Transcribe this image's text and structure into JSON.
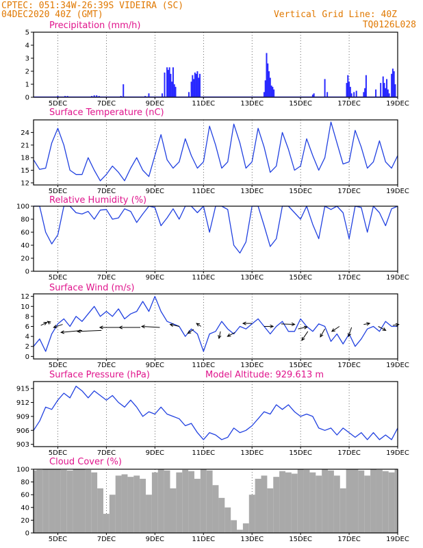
{
  "header": {
    "line1_left": "CPTEC:   051:34W-26:39S   VIDEIRA (SC)",
    "line2_left": "04DEC2020 40Z (GMT)",
    "line1_right": "Vertical Grid Line: 40Z",
    "line2_right": "TQ0126L028"
  },
  "x_labels": [
    "5DEC",
    "7DEC",
    "9DEC",
    "11DEC",
    "13DEC",
    "15DEC",
    "17DEC",
    "19DEC"
  ],
  "chart_data": [
    {
      "type": "bar",
      "title": "Precipitation (mm/h)",
      "ylim": [
        0,
        5
      ],
      "yticks": [
        "0",
        "1",
        "2",
        "3",
        "4",
        "5"
      ],
      "x_unit": "day of month (Dec 2020)",
      "color": "#2828ff",
      "x": [
        4.3,
        4.8,
        5.0,
        5.3,
        5.4,
        6.4,
        6.5,
        6.6,
        6.7,
        7.6,
        7.7,
        8.6,
        8.75,
        9.3,
        9.4,
        9.5,
        9.55,
        9.6,
        9.65,
        9.7,
        9.75,
        9.8,
        9.85,
        10.4,
        10.5,
        10.55,
        10.6,
        10.65,
        10.7,
        10.75,
        10.8,
        10.85,
        13.5,
        13.55,
        13.6,
        13.65,
        13.7,
        13.75,
        13.8,
        13.85,
        13.9,
        15.5,
        15.55,
        16.0,
        16.1,
        16.9,
        16.95,
        17.0,
        17.05,
        17.1,
        17.2,
        17.3,
        17.6,
        17.65,
        17.7,
        18.1,
        18.3,
        18.4,
        18.45,
        18.5,
        18.55,
        18.6,
        18.65,
        18.75,
        18.8,
        18.85,
        18.9
      ],
      "values": [
        0.05,
        0.05,
        0.1,
        0.1,
        0.1,
        0.1,
        0.15,
        0.15,
        0.1,
        0.1,
        1.0,
        0.1,
        0.3,
        0.3,
        1.9,
        2.3,
        2.1,
        2.3,
        1.8,
        1.2,
        2.3,
        1.0,
        0.8,
        0.4,
        1.2,
        1.7,
        1.4,
        1.9,
        1.8,
        2.0,
        1.5,
        1.8,
        0.4,
        1.3,
        3.4,
        2.6,
        2.0,
        1.5,
        0.9,
        0.8,
        0.6,
        0.2,
        0.3,
        1.4,
        0.4,
        1.1,
        1.7,
        1.2,
        0.8,
        0.3,
        0.4,
        0.5,
        0.4,
        0.7,
        1.7,
        0.6,
        1.1,
        1.6,
        1.1,
        0.7,
        1.4,
        0.6,
        0.3,
        1.8,
        2.2,
        2.0,
        1.0
      ]
    },
    {
      "type": "line",
      "title": "Surface Temperature (nC)",
      "ylim": [
        11.5,
        27
      ],
      "yticks": [
        "12",
        "15",
        "18",
        "21",
        "24"
      ],
      "x_unit": "day of month (Dec 2020)",
      "color": "#2040e0",
      "x": [
        4.0,
        4.25,
        4.5,
        4.75,
        5.0,
        5.25,
        5.5,
        5.75,
        6.0,
        6.25,
        6.5,
        6.75,
        7.0,
        7.25,
        7.5,
        7.75,
        8.0,
        8.25,
        8.5,
        8.75,
        9.0,
        9.25,
        9.5,
        9.75,
        10.0,
        10.25,
        10.5,
        10.75,
        11.0,
        11.25,
        11.5,
        11.75,
        12.0,
        12.25,
        12.5,
        12.75,
        13.0,
        13.25,
        13.5,
        13.75,
        14.0,
        14.25,
        14.5,
        14.75,
        15.0,
        15.25,
        15.5,
        15.75,
        16.0,
        16.25,
        16.5,
        16.75,
        17.0,
        17.25,
        17.5,
        17.75,
        18.0,
        18.25,
        18.5,
        18.75,
        19.0
      ],
      "values": [
        17.5,
        15.2,
        15.5,
        21.5,
        25.0,
        21.0,
        15.0,
        14.0,
        14.0,
        18.0,
        15.0,
        12.5,
        14.0,
        16.0,
        14.5,
        12.5,
        15.5,
        18.0,
        15.0,
        13.5,
        18.5,
        23.5,
        17.5,
        15.5,
        17.0,
        22.5,
        18.5,
        15.5,
        17.0,
        25.5,
        21.0,
        15.5,
        17.0,
        26.0,
        21.5,
        15.5,
        17.0,
        25.0,
        20.5,
        14.5,
        16.0,
        24.0,
        20.0,
        15.0,
        16.0,
        22.5,
        18.5,
        15.0,
        18.0,
        26.5,
        21.5,
        16.5,
        17.0,
        24.5,
        20.5,
        15.5,
        17.0,
        22.0,
        17.0,
        15.5,
        18.5
      ]
    },
    {
      "type": "line",
      "title": "Relative Humidity (%)",
      "ylim": [
        0,
        100
      ],
      "yticks": [
        "0",
        "20",
        "40",
        "60",
        "80",
        "100"
      ],
      "x_unit": "day of month (Dec 2020)",
      "color": "#2040e0",
      "x": [
        4.0,
        4.25,
        4.5,
        4.75,
        5.0,
        5.25,
        5.5,
        5.75,
        6.0,
        6.25,
        6.5,
        6.75,
        7.0,
        7.25,
        7.5,
        7.75,
        8.0,
        8.25,
        8.5,
        8.75,
        9.0,
        9.25,
        9.5,
        9.75,
        10.0,
        10.25,
        10.5,
        10.75,
        11.0,
        11.25,
        11.5,
        11.75,
        12.0,
        12.25,
        12.5,
        12.75,
        13.0,
        13.25,
        13.5,
        13.75,
        14.0,
        14.25,
        14.5,
        14.75,
        15.0,
        15.25,
        15.5,
        15.75,
        16.0,
        16.25,
        16.5,
        16.75,
        17.0,
        17.25,
        17.5,
        17.75,
        18.0,
        18.25,
        18.5,
        18.75,
        19.0
      ],
      "values": [
        100,
        100,
        60,
        42,
        56,
        100,
        100,
        90,
        88,
        92,
        80,
        94,
        95,
        80,
        82,
        96,
        92,
        75,
        88,
        100,
        98,
        70,
        82,
        96,
        80,
        100,
        100,
        90,
        100,
        60,
        100,
        100,
        95,
        40,
        28,
        45,
        100,
        100,
        70,
        38,
        50,
        100,
        100,
        90,
        80,
        100,
        72,
        50,
        100,
        95,
        100,
        90,
        50,
        100,
        98,
        60,
        100,
        90,
        70,
        96,
        100
      ]
    },
    {
      "type": "line",
      "title": "Surface Wind (m/s)",
      "ylim": [
        -0.5,
        12.5
      ],
      "yticks": [
        "0",
        "2",
        "4",
        "6",
        "8",
        "10",
        "12"
      ],
      "x_unit": "day of month (Dec 2020)",
      "color": "#2040e0",
      "x": [
        4.0,
        4.25,
        4.5,
        4.75,
        5.0,
        5.25,
        5.5,
        5.75,
        6.0,
        6.25,
        6.5,
        6.75,
        7.0,
        7.25,
        7.5,
        7.75,
        8.0,
        8.25,
        8.5,
        8.75,
        9.0,
        9.25,
        9.5,
        9.75,
        10.0,
        10.25,
        10.5,
        10.75,
        11.0,
        11.25,
        11.5,
        11.75,
        12.0,
        12.25,
        12.5,
        12.75,
        13.0,
        13.25,
        13.5,
        13.75,
        14.0,
        14.25,
        14.5,
        14.75,
        15.0,
        15.25,
        15.5,
        15.75,
        16.0,
        16.25,
        16.5,
        16.75,
        17.0,
        17.25,
        17.5,
        17.75,
        18.0,
        18.25,
        18.5,
        18.75,
        19.0
      ],
      "values": [
        2.0,
        3.5,
        1.0,
        4.5,
        6.5,
        7.5,
        6.0,
        8.0,
        7.0,
        8.5,
        10.0,
        8.0,
        9.0,
        8.0,
        9.5,
        7.5,
        8.5,
        9.0,
        11.0,
        9.0,
        12.0,
        9.0,
        7.0,
        6.5,
        6.0,
        4.0,
        5.5,
        4.5,
        1.0,
        4.5,
        5.0,
        7.0,
        5.5,
        4.5,
        6.0,
        5.5,
        6.5,
        7.5,
        6.0,
        4.5,
        6.0,
        7.0,
        5.0,
        5.0,
        7.5,
        6.0,
        5.0,
        6.5,
        6.0,
        3.0,
        4.5,
        2.5,
        4.5,
        2.0,
        3.5,
        5.5,
        6.0,
        5.0,
        7.0,
        6.0,
        6.0
      ],
      "arrow_x": [
        4.3,
        4.7,
        5.2,
        6.0,
        6.8,
        7.6,
        8.4,
        9.2,
        10.0,
        10.6,
        10.9,
        11.7,
        12.3,
        13.0,
        13.5,
        14.2,
        14.9,
        15.3,
        16.0,
        16.6,
        17.1,
        17.6,
        18.2,
        18.8
      ],
      "arrow_y": [
        6.2,
        6.6,
        6.4,
        5.2,
        5.2,
        5.8,
        5.8,
        5.8,
        6.0,
        5.4,
        6.0,
        5.0,
        4.8,
        6.6,
        6.0,
        6.5,
        5.5,
        5.0,
        5.5,
        6.0,
        5.8,
        6.4,
        6.0,
        6.2
      ],
      "arrow_dx": [
        0.4,
        -0.2,
        -0.6,
        -1.4,
        -1.6,
        -1.4,
        -1.4,
        -1.2,
        -0.6,
        -0.4,
        -0.3,
        -0.1,
        -0.5,
        -0.6,
        0.6,
        0.9,
        0.6,
        -0.4,
        -0.3,
        -0.5,
        -0.2,
        0.4,
        0.5,
        0.4
      ],
      "arrow_dy": [
        0.6,
        0.4,
        -0.6,
        -0.4,
        -0.2,
        0.0,
        0.0,
        0.2,
        0.4,
        -0.8,
        0.6,
        -1.4,
        -0.8,
        0.0,
        0.0,
        -0.1,
        0.4,
        -1.8,
        -1.6,
        -1.0,
        -1.8,
        0.2,
        -0.8,
        0.2
      ]
    },
    {
      "type": "line",
      "title": "Surface Pressure (hPa)",
      "annotation": "Model Altitude: 929.613 m",
      "ylim": [
        902.5,
        916.5
      ],
      "yticks": [
        "903",
        "906",
        "909",
        "912",
        "915"
      ],
      "x_unit": "day of month (Dec 2020)",
      "color": "#2040e0",
      "x": [
        4.0,
        4.25,
        4.5,
        4.75,
        5.0,
        5.25,
        5.5,
        5.75,
        6.0,
        6.25,
        6.5,
        6.75,
        7.0,
        7.25,
        7.5,
        7.75,
        8.0,
        8.25,
        8.5,
        8.75,
        9.0,
        9.25,
        9.5,
        9.75,
        10.0,
        10.25,
        10.5,
        10.75,
        11.0,
        11.25,
        11.5,
        11.75,
        12.0,
        12.25,
        12.5,
        12.75,
        13.0,
        13.25,
        13.5,
        13.75,
        14.0,
        14.25,
        14.5,
        14.75,
        15.0,
        15.25,
        15.5,
        15.75,
        16.0,
        16.25,
        16.5,
        16.75,
        17.0,
        17.25,
        17.5,
        17.75,
        18.0,
        18.25,
        18.5,
        18.75,
        19.0
      ],
      "values": [
        906.0,
        908.0,
        911.0,
        910.5,
        912.5,
        914.0,
        913.0,
        915.5,
        914.5,
        913.0,
        914.5,
        913.5,
        912.5,
        913.5,
        912.0,
        911.0,
        912.5,
        911.0,
        909.0,
        910.0,
        909.5,
        911.0,
        909.5,
        909.0,
        908.5,
        907.0,
        907.5,
        905.5,
        904.0,
        905.5,
        905.0,
        904.0,
        904.5,
        906.5,
        905.5,
        906.0,
        907.0,
        908.5,
        910.0,
        909.5,
        911.5,
        910.5,
        911.5,
        910.0,
        909.0,
        909.5,
        909.0,
        906.5,
        906.0,
        906.5,
        905.0,
        906.5,
        905.5,
        904.5,
        905.5,
        904.0,
        905.5,
        904.0,
        905.0,
        904.0,
        906.5
      ]
    },
    {
      "type": "area",
      "title": "Cloud Cover (%)",
      "ylim": [
        0,
        100
      ],
      "yticks": [
        "0",
        "20",
        "40",
        "60",
        "80",
        "100"
      ],
      "x_unit": "day of month (Dec 2020)",
      "color": "#a9a9a9",
      "x": [
        4.0,
        4.25,
        4.5,
        4.75,
        5.0,
        5.25,
        5.5,
        5.75,
        6.0,
        6.25,
        6.5,
        6.75,
        7.0,
        7.25,
        7.5,
        7.75,
        8.0,
        8.25,
        8.5,
        8.75,
        9.0,
        9.25,
        9.5,
        9.75,
        10.0,
        10.25,
        10.5,
        10.75,
        11.0,
        11.25,
        11.5,
        11.75,
        12.0,
        12.25,
        12.5,
        12.75,
        13.0,
        13.25,
        13.5,
        13.75,
        14.0,
        14.25,
        14.5,
        14.75,
        15.0,
        15.25,
        15.5,
        15.75,
        16.0,
        16.25,
        16.5,
        16.75,
        17.0,
        17.25,
        17.5,
        17.75,
        18.0,
        18.25,
        18.5,
        18.75,
        19.0
      ],
      "values": [
        98,
        99,
        100,
        100,
        100,
        99,
        98,
        100,
        100,
        99,
        95,
        70,
        30,
        60,
        90,
        92,
        88,
        90,
        85,
        60,
        95,
        100,
        98,
        70,
        95,
        99,
        97,
        85,
        100,
        98,
        75,
        55,
        40,
        20,
        5,
        15,
        60,
        85,
        90,
        70,
        88,
        97,
        95,
        93,
        100,
        99,
        95,
        90,
        100,
        98,
        90,
        70,
        100,
        100,
        98,
        90,
        100,
        99,
        97,
        95,
        100
      ]
    }
  ]
}
